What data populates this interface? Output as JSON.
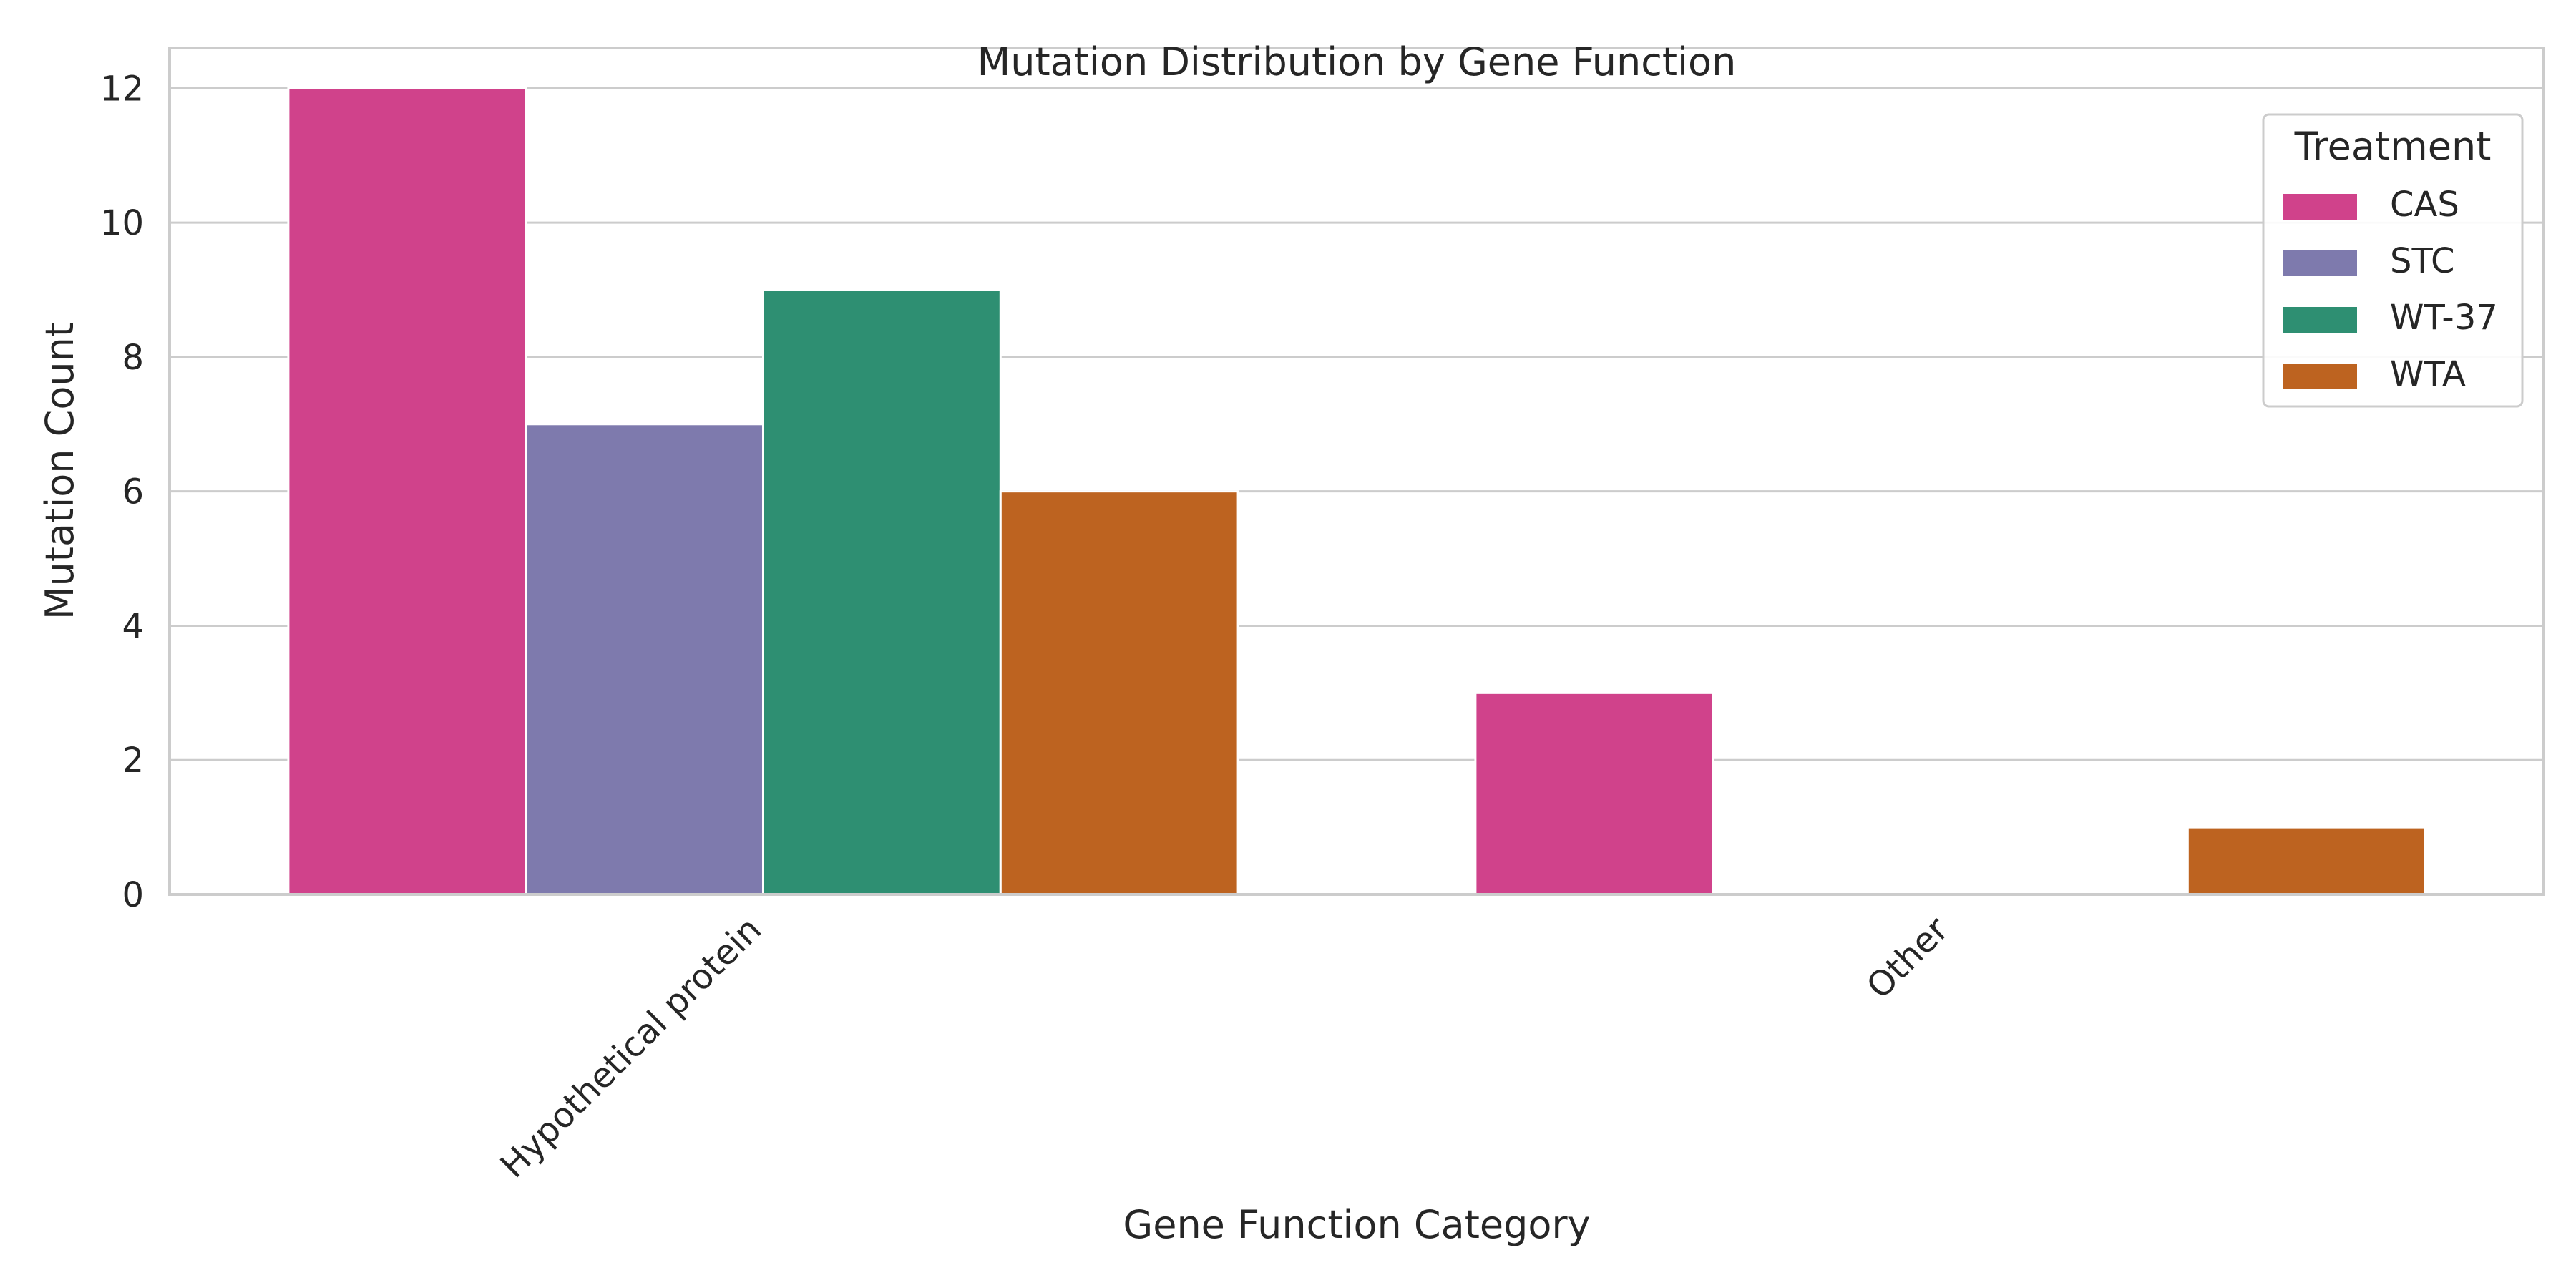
{
  "chart_data": {
    "type": "bar",
    "title": "Mutation Distribution by Gene Function",
    "xlabel": "Gene Function Category",
    "ylabel": "Mutation Count",
    "categories": [
      "Hypothetical protein",
      "Other"
    ],
    "series": [
      {
        "name": "CAS",
        "color": "#d0428b",
        "values": [
          12,
          3
        ]
      },
      {
        "name": "STC",
        "color": "#7e7aad",
        "values": [
          7,
          0
        ]
      },
      {
        "name": "WT-37",
        "color": "#2e8f72",
        "values": [
          9,
          0
        ]
      },
      {
        "name": "WTA",
        "color": "#bd6320",
        "values": [
          6,
          1
        ]
      }
    ],
    "ylim": [
      0,
      12.6
    ],
    "yticks": [
      0,
      2,
      4,
      6,
      8,
      10,
      12
    ],
    "grid": true,
    "legend": {
      "title": "Treatment",
      "position": "top-right"
    }
  }
}
